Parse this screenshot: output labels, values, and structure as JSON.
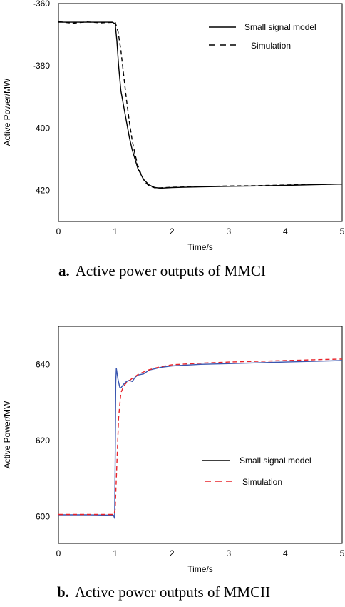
{
  "chart_data": [
    {
      "type": "line",
      "caption_letter": "a.",
      "caption": "Active power outputs of MMCI",
      "xlabel": "Time/s",
      "ylabel": "Active Power/MW",
      "xlim": [
        0,
        5
      ],
      "ylim": [
        -430,
        -360
      ],
      "xticks": [
        "0",
        "1",
        "2",
        "3",
        "4",
        "5"
      ],
      "yticks": [
        "-360",
        "-380",
        "-400",
        "-420"
      ],
      "legend_position": "top-right",
      "series": [
        {
          "name": "Small signal model",
          "style": "solid",
          "color": "#000000",
          "x": [
            0,
            0.5,
            0.95,
            1.0,
            1.03,
            1.06,
            1.1,
            1.15,
            1.2,
            1.25,
            1.3,
            1.35,
            1.4,
            1.5,
            1.6,
            1.7,
            1.8,
            2.0,
            2.5,
            3.0,
            3.5,
            4.0,
            4.5,
            5.0
          ],
          "y": [
            -366,
            -366,
            -366,
            -366.5,
            -372,
            -380,
            -388,
            -393,
            -398,
            -403,
            -407,
            -410,
            -413,
            -416.5,
            -418.3,
            -419.1,
            -419.3,
            -419.1,
            -418.9,
            -418.7,
            -418.6,
            -418.4,
            -418.2,
            -418.0
          ]
        },
        {
          "name": "Simulation",
          "style": "dashed",
          "color": "#000000",
          "x": [
            0,
            0.25,
            0.5,
            0.75,
            1.0,
            1.05,
            1.1,
            1.15,
            1.2,
            1.25,
            1.3,
            1.35,
            1.4,
            1.45,
            1.5,
            1.55,
            1.6,
            1.7,
            1.8,
            2.0,
            2.5,
            3.0,
            3.5,
            4.0,
            4.5,
            5.0
          ],
          "y": [
            -365.8,
            -366.3,
            -365.9,
            -366.2,
            -366,
            -369,
            -375,
            -383,
            -391,
            -398,
            -404,
            -408.5,
            -412,
            -414.5,
            -416.5,
            -417.8,
            -418.6,
            -419.2,
            -419.2,
            -419.0,
            -418.8,
            -418.6,
            -418.5,
            -418.3,
            -418.1,
            -418.0
          ]
        }
      ]
    },
    {
      "type": "line",
      "caption_letter": "b.",
      "caption": "Active power outputs of MMCII",
      "xlabel": "Time/s",
      "ylabel": "Active Power/MW",
      "xlim": [
        0,
        5
      ],
      "ylim": [
        593,
        650
      ],
      "xticks": [
        "0",
        "1",
        "2",
        "3",
        "4",
        "5"
      ],
      "yticks": [
        "600",
        "620",
        "640"
      ],
      "legend_position": "center-right",
      "series": [
        {
          "name": "Small signal model",
          "style": "solid",
          "color": "#3a56b0",
          "x": [
            0,
            0.5,
            0.97,
            0.99,
            1.0,
            1.01,
            1.02,
            1.03,
            1.05,
            1.08,
            1.1,
            1.15,
            1.2,
            1.25,
            1.3,
            1.35,
            1.4,
            1.5,
            1.6,
            1.8,
            2.0,
            2.5,
            3.0,
            3.5,
            4.0,
            4.5,
            5.0
          ],
          "y": [
            600.5,
            600.5,
            600.4,
            599.6,
            615,
            635,
            639,
            638,
            636,
            634,
            633.8,
            634.8,
            635.5,
            635.8,
            635.5,
            636.6,
            637.2,
            637.5,
            638.5,
            639.2,
            639.6,
            640.0,
            640.2,
            640.4,
            640.6,
            640.8,
            641.0
          ]
        },
        {
          "name": "Simulation",
          "style": "dashed",
          "color": "#e8232a",
          "x": [
            0,
            0.5,
            0.98,
            1.0,
            1.03,
            1.06,
            1.1,
            1.15,
            1.2,
            1.3,
            1.4,
            1.5,
            1.6,
            1.8,
            2.0,
            2.5,
            3.0,
            3.5,
            4.0,
            4.5,
            5.0
          ],
          "y": [
            600.6,
            600.6,
            600.6,
            602,
            614,
            626,
            632.5,
            634.3,
            635.2,
            636.3,
            637.3,
            638.0,
            638.6,
            639.4,
            639.9,
            640.3,
            640.6,
            640.8,
            641.0,
            641.2,
            641.4
          ]
        }
      ]
    }
  ]
}
